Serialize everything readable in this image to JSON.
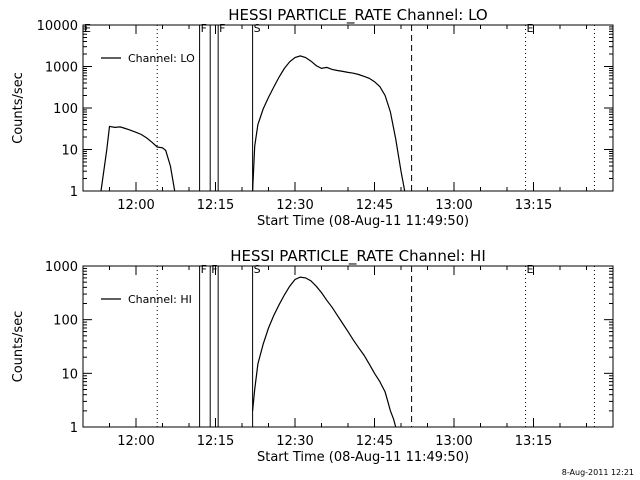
{
  "footer": {
    "timestamp": "8-Aug-2011 12:21"
  },
  "chart_data": [
    {
      "type": "line",
      "title": "HESSI PARTICLE_RATE Channel: LO",
      "xlabel": "Start Time (08-Aug-11 11:49:50)",
      "ylabel": "Counts/sec",
      "yscale": "log",
      "xlim": [
        "11:50",
        "13:30"
      ],
      "ylim": [
        1,
        10000
      ],
      "xticks": [
        "12:00",
        "12:15",
        "12:30",
        "12:45",
        "13:00",
        "13:15"
      ],
      "yticks": [
        "1",
        "10",
        "100",
        "1000",
        "10000"
      ],
      "legend": {
        "label": "Channel: LO",
        "position": "top-left"
      },
      "markers": [
        {
          "label": "E",
          "time": "11:50",
          "style": "solid"
        },
        {
          "label": "",
          "time": "12:04",
          "style": "dotted"
        },
        {
          "label": "F",
          "time": "12:12",
          "style": "solid"
        },
        {
          "label": "",
          "time": "12:14",
          "style": "solid"
        },
        {
          "label": "F",
          "time": "12:15.5",
          "style": "solid"
        },
        {
          "label": "S",
          "time": "12:22",
          "style": "solid"
        },
        {
          "label": "",
          "time": "12:52",
          "style": "dashed"
        },
        {
          "label": "E",
          "time": "13:13.5",
          "style": "dotted"
        },
        {
          "label": "",
          "time": "13:26.5",
          "style": "dotted"
        }
      ],
      "series": [
        {
          "name": "Channel: LO",
          "segments": [
            [
              [
                "11:53.4",
                1
              ],
              [
                "11:54.5",
                10
              ],
              [
                "11:55",
                36
              ],
              [
                "11:56",
                34
              ],
              [
                "11:57",
                35
              ],
              [
                "11:58",
                32
              ],
              [
                "11:59",
                29
              ],
              [
                "12:00",
                26
              ],
              [
                "12:01",
                23
              ],
              [
                "12:02",
                19
              ],
              [
                "12:03",
                15
              ],
              [
                "12:04",
                11.5
              ],
              [
                "12:05",
                11
              ],
              [
                "12:05.6",
                9.5
              ],
              [
                "12:06.5",
                4
              ],
              [
                "12:07.3",
                1
              ]
            ],
            [
              [
                "12:22",
                1
              ],
              [
                "12:22.4",
                12
              ],
              [
                "12:23",
                40
              ],
              [
                "12:24",
                95
              ],
              [
                "12:25",
                180
              ],
              [
                "12:26",
                320
              ],
              [
                "12:27",
                560
              ],
              [
                "12:28",
                900
              ],
              [
                "12:29",
                1300
              ],
              [
                "12:30",
                1650
              ],
              [
                "12:31",
                1800
              ],
              [
                "12:32",
                1650
              ],
              [
                "12:33",
                1350
              ],
              [
                "12:34",
                1050
              ],
              [
                "12:35",
                900
              ],
              [
                "12:36",
                950
              ],
              [
                "12:37",
                850
              ],
              [
                "12:38",
                800
              ],
              [
                "12:39",
                760
              ],
              [
                "12:40",
                720
              ],
              [
                "12:41",
                690
              ],
              [
                "12:42",
                640
              ],
              [
                "12:43",
                580
              ],
              [
                "12:44",
                520
              ],
              [
                "12:45",
                430
              ],
              [
                "12:46",
                330
              ],
              [
                "12:47",
                200
              ],
              [
                "12:48",
                80
              ],
              [
                "12:49",
                18
              ],
              [
                "12:50",
                3
              ],
              [
                "12:50.7",
                1
              ]
            ]
          ]
        }
      ]
    },
    {
      "type": "line",
      "title": "HESSI PARTICLE_RATE Channel: HI",
      "xlabel": "Start Time (08-Aug-11 11:49:50)",
      "ylabel": "Counts/sec",
      "yscale": "log",
      "xlim": [
        "11:50",
        "13:30"
      ],
      "ylim": [
        1,
        1000
      ],
      "xticks": [
        "12:00",
        "12:15",
        "12:30",
        "12:45",
        "13:00",
        "13:15"
      ],
      "yticks": [
        "1",
        "10",
        "100",
        "1000"
      ],
      "legend": {
        "label": "Channel: HI",
        "position": "top-left"
      },
      "markers": [
        {
          "label": "",
          "time": "11:50",
          "style": "solid"
        },
        {
          "label": "",
          "time": "12:04",
          "style": "dotted"
        },
        {
          "label": "F",
          "time": "12:12",
          "style": "solid"
        },
        {
          "label": "F",
          "time": "12:14",
          "style": "solid"
        },
        {
          "label": "",
          "time": "12:15.5",
          "style": "solid"
        },
        {
          "label": "S",
          "time": "12:22",
          "style": "solid"
        },
        {
          "label": "",
          "time": "12:52",
          "style": "dashed"
        },
        {
          "label": "E",
          "time": "13:13.5",
          "style": "dotted"
        },
        {
          "label": "",
          "time": "13:26.5",
          "style": "dotted"
        }
      ],
      "series": [
        {
          "name": "Channel: HI",
          "segments": [
            [
              [
                "12:22",
                2
              ],
              [
                "12:22.4",
                5
              ],
              [
                "12:23",
                15
              ],
              [
                "12:24",
                35
              ],
              [
                "12:25",
                70
              ],
              [
                "12:26",
                120
              ],
              [
                "12:27",
                190
              ],
              [
                "12:28",
                290
              ],
              [
                "12:29",
                420
              ],
              [
                "12:30",
                560
              ],
              [
                "12:31",
                620
              ],
              [
                "12:32",
                600
              ],
              [
                "12:33",
                530
              ],
              [
                "12:34",
                420
              ],
              [
                "12:35",
                320
              ],
              [
                "12:36",
                230
              ],
              [
                "12:37",
                170
              ],
              [
                "12:38",
                120
              ],
              [
                "12:39",
                85
              ],
              [
                "12:40",
                60
              ],
              [
                "12:41",
                42
              ],
              [
                "12:42",
                30
              ],
              [
                "12:43",
                22
              ],
              [
                "12:44",
                15
              ],
              [
                "12:45",
                10
              ],
              [
                "12:46",
                7
              ],
              [
                "12:47",
                4.5
              ],
              [
                "12:47.5",
                3
              ],
              [
                "12:48",
                2
              ],
              [
                "12:48.6",
                1.4
              ],
              [
                "12:49",
                1
              ]
            ]
          ]
        }
      ]
    }
  ]
}
